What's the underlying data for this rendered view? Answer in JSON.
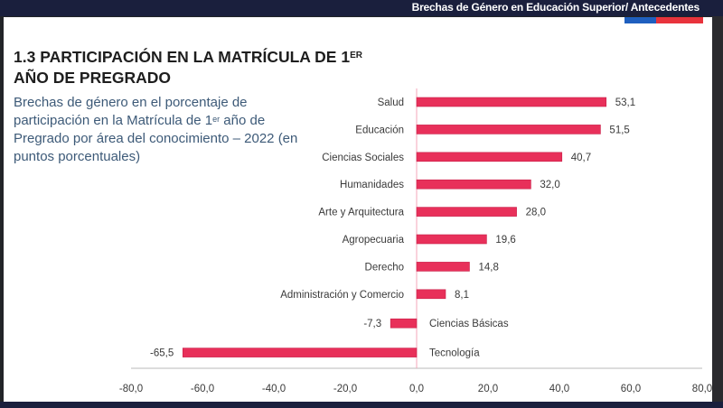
{
  "header": {
    "title": "Brechas de Género en Educación Superior/ Antecedentes",
    "flag_colors": [
      "#1f5fbf",
      "#e8333c"
    ],
    "bar_color": "#1a1f3d"
  },
  "slide": {
    "heading_main": "1.3 PARTICIPACIÓN EN LA MATRÍCULA DE 1",
    "heading_sup": "ER",
    "heading_line2": "AÑO DE PREGRADO",
    "subtitle_part1": "Brechas de género en el porcentaje de participación en la Matrícula de 1",
    "subtitle_sup": "er",
    "subtitle_part2": " año de Pregrado por área del conocimiento – 2022 (en puntos porcentuales)"
  },
  "chart_data": {
    "type": "bar",
    "orientation": "horizontal",
    "title": "Brechas de género en el porcentaje de participación en la Matrícula de 1er año de Pregrado por área del conocimiento – 2022",
    "xlabel": "",
    "ylabel": "",
    "xlim": [
      -80,
      80
    ],
    "xticks": [
      -80,
      -60,
      -40,
      -20,
      0,
      20,
      40,
      60,
      80
    ],
    "xtick_labels": [
      "-80,0",
      "-60,0",
      "-40,0",
      "-20,0",
      "0,0",
      "20,0",
      "40,0",
      "60,0",
      "80,0"
    ],
    "grid": false,
    "bar_color": "#e8305a",
    "zero_line_color": "#f4a6b8",
    "categories": [
      "Salud",
      "Educación",
      "Ciencias Sociales",
      "Humanidades",
      "Arte y Arquitectura",
      "Agropecuaria",
      "Derecho",
      "Administración y Comercio",
      "Ciencias Básicas",
      "Tecnología"
    ],
    "values": [
      53.1,
      51.5,
      40.7,
      32.0,
      28.0,
      19.6,
      14.8,
      8.1,
      -7.3,
      -65.5
    ],
    "value_labels": [
      "53,1",
      "51,5",
      "40,7",
      "32,0",
      "28,0",
      "19,6",
      "14,8",
      "8,1",
      "-7,3",
      "-65,5"
    ]
  }
}
